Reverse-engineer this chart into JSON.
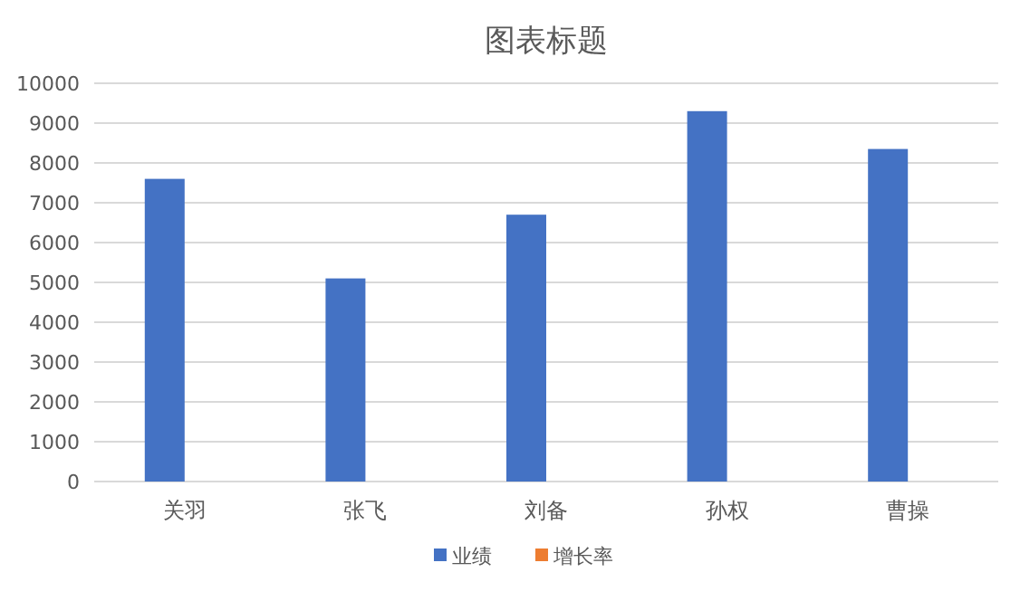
{
  "chart_data": {
    "type": "bar",
    "title": "图表标题",
    "categories": [
      "关羽",
      "张飞",
      "刘备",
      "孙权",
      "曹操"
    ],
    "series": [
      {
        "name": "业绩",
        "color": "#4472c4",
        "values": [
          7600,
          5100,
          6700,
          9300,
          8350
        ]
      },
      {
        "name": "增长率",
        "color": "#ed7d31",
        "values": [
          0,
          0,
          0,
          0,
          0
        ]
      }
    ],
    "ylim": [
      0,
      10000
    ],
    "yticks": [
      0,
      1000,
      2000,
      3000,
      4000,
      5000,
      6000,
      7000,
      8000,
      9000,
      10000
    ],
    "grid": "y",
    "legend": "bottom"
  }
}
